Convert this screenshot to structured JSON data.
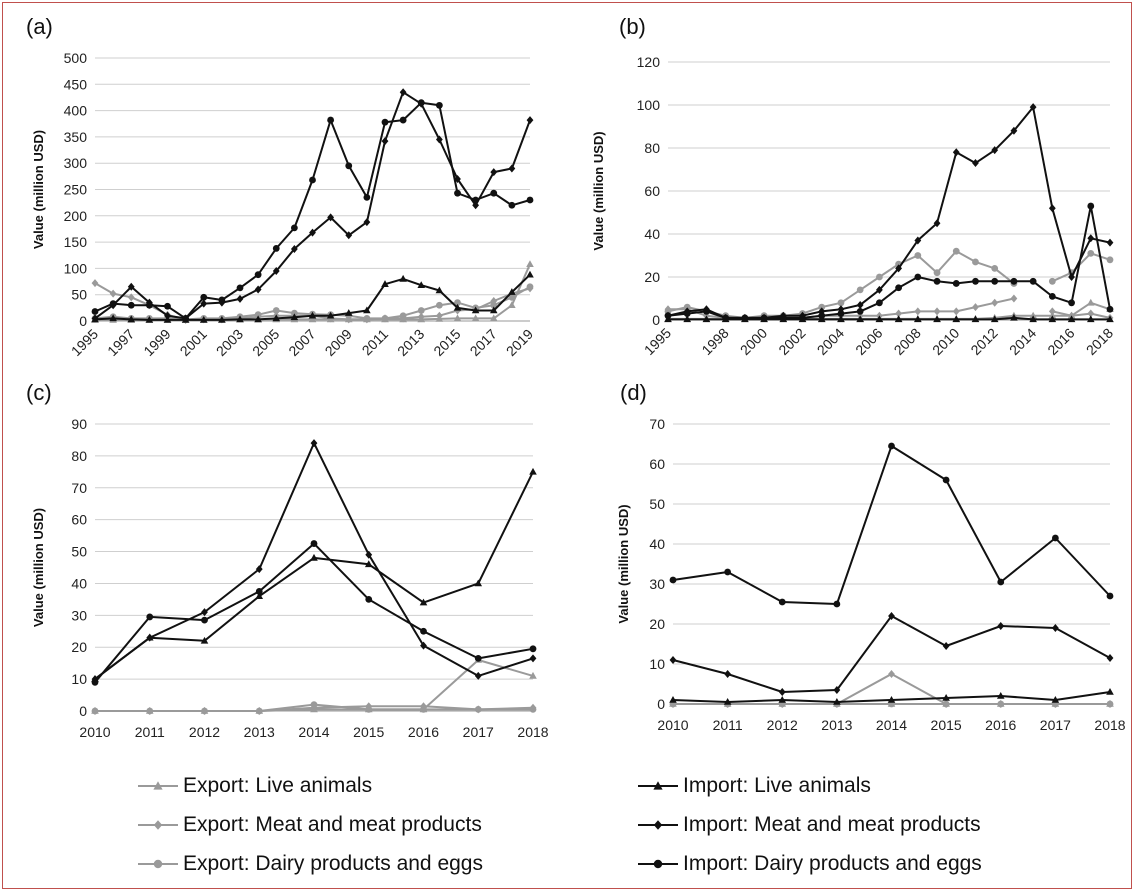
{
  "colors": {
    "export": "#9a9a9a",
    "import": "#111111",
    "axis": "#999999",
    "grid": "#cfcfcf"
  },
  "chart_data": [
    {
      "panel": "(a)",
      "type": "line",
      "ylabel": "Value (million USD)",
      "ylim": [
        0,
        500
      ],
      "yticks": [
        0,
        50,
        100,
        150,
        200,
        250,
        300,
        350,
        400,
        450,
        500
      ],
      "x": [
        1995,
        1996,
        1997,
        1998,
        1999,
        2000,
        2001,
        2002,
        2003,
        2004,
        2005,
        2006,
        2007,
        2008,
        2009,
        2010,
        2011,
        2012,
        2013,
        2014,
        2015,
        2016,
        2017,
        2018,
        2019
      ],
      "xticks": [
        1995,
        1997,
        1999,
        2001,
        2003,
        2005,
        2007,
        2009,
        2011,
        2013,
        2015,
        2017,
        2019
      ],
      "series": [
        {
          "name": "Export: Live animals",
          "group": "export",
          "marker": "triangle",
          "values": [
            2,
            2,
            2,
            2,
            2,
            2,
            2,
            3,
            3,
            3,
            3,
            3,
            3,
            3,
            3,
            3,
            3,
            3,
            3,
            4,
            5,
            5,
            5,
            30,
            108
          ]
        },
        {
          "name": "Export: Meat and meat products",
          "group": "export",
          "marker": "diamond",
          "values": [
            72,
            52,
            45,
            30,
            12,
            2,
            3,
            3,
            5,
            8,
            10,
            10,
            10,
            5,
            3,
            3,
            5,
            5,
            8,
            10,
            20,
            22,
            38,
            52,
            62
          ]
        },
        {
          "name": "Export: Dairy products and eggs",
          "group": "export",
          "marker": "circle",
          "values": [
            5,
            8,
            5,
            5,
            5,
            3,
            5,
            5,
            8,
            12,
            20,
            15,
            13,
            12,
            10,
            5,
            5,
            10,
            20,
            30,
            35,
            25,
            30,
            45,
            65
          ]
        },
        {
          "name": "Import: Live animals",
          "group": "import",
          "marker": "triangle",
          "values": [
            3,
            5,
            3,
            2,
            2,
            2,
            2,
            2,
            3,
            3,
            5,
            7,
            10,
            10,
            15,
            20,
            70,
            80,
            68,
            58,
            25,
            20,
            20,
            55,
            88
          ]
        },
        {
          "name": "Import: Meat and meat products",
          "group": "import",
          "marker": "diamond",
          "values": [
            5,
            30,
            65,
            35,
            10,
            5,
            33,
            35,
            42,
            60,
            95,
            137,
            168,
            197,
            163,
            188,
            342,
            435,
            413,
            345,
            270,
            220,
            283,
            290,
            382
          ]
        },
        {
          "name": "Import: Dairy products and eggs",
          "group": "import",
          "marker": "circle",
          "values": [
            18,
            33,
            30,
            30,
            28,
            5,
            45,
            40,
            63,
            88,
            138,
            177,
            268,
            382,
            295,
            235,
            378,
            382,
            415,
            410,
            243,
            230,
            243,
            220,
            230
          ]
        }
      ]
    },
    {
      "panel": "(b)",
      "type": "line",
      "ylabel": "Value (million USD)",
      "ylim": [
        0,
        120
      ],
      "yticks": [
        0,
        20,
        40,
        60,
        80,
        100,
        120
      ],
      "x": [
        1995,
        1996,
        1997,
        1998,
        1999,
        2000,
        2001,
        2002,
        2003,
        2004,
        2005,
        2006,
        2007,
        2008,
        2009,
        2010,
        2011,
        2012,
        2013,
        2014,
        2015,
        2016,
        2017,
        2018
      ],
      "xticks": [
        1995,
        1998,
        2000,
        2002,
        2004,
        2006,
        2008,
        2010,
        2012,
        2014,
        2016,
        2018
      ],
      "series": [
        {
          "name": "Export: Live animals",
          "group": "export",
          "marker": "triangle",
          "values": [
            0.5,
            0.5,
            0.5,
            0.5,
            0.5,
            0.5,
            0.5,
            0.5,
            0.5,
            0.5,
            0.5,
            0.5,
            0.5,
            0.5,
            0.5,
            0.5,
            0.5,
            1,
            2,
            2,
            2,
            2,
            8,
            5
          ]
        },
        {
          "name": "Export: Meat and meat products",
          "group": "export",
          "marker": "diamond",
          "values": [
            5,
            5,
            2,
            1,
            1,
            1,
            1,
            1,
            2,
            2,
            2,
            2,
            3,
            4,
            4,
            4,
            6,
            8,
            10,
            null,
            4,
            2,
            3,
            1
          ]
        },
        {
          "name": "Export: Dairy products and eggs",
          "group": "export",
          "marker": "circle",
          "values": [
            4,
            6,
            4,
            2,
            1,
            2,
            2,
            3,
            6,
            8,
            14,
            20,
            26,
            30,
            22,
            32,
            27,
            24,
            17,
            null,
            18,
            22,
            31,
            28
          ]
        },
        {
          "name": "Import: Live animals",
          "group": "import",
          "marker": "triangle",
          "values": [
            0.3,
            0.3,
            0.3,
            0.3,
            0.3,
            0.3,
            0.3,
            0.3,
            0.3,
            0.3,
            0.3,
            0.3,
            0.3,
            0.3,
            0.3,
            0.3,
            0.3,
            0.3,
            1,
            0.3,
            0.3,
            0.3,
            0.3,
            0.3
          ]
        },
        {
          "name": "Import: Meat and meat products",
          "group": "import",
          "marker": "diamond",
          "values": [
            2,
            4,
            5,
            1,
            1,
            1,
            2,
            2,
            4,
            5,
            7,
            14,
            24,
            37,
            45,
            78,
            73,
            79,
            88,
            99,
            52,
            20,
            38,
            36
          ]
        },
        {
          "name": "Import: Dairy products and eggs",
          "group": "import",
          "marker": "circle",
          "values": [
            2,
            3,
            4,
            1,
            1,
            1,
            1,
            1,
            2,
            3,
            4,
            8,
            15,
            20,
            18,
            17,
            18,
            18,
            18,
            18,
            11,
            8,
            53,
            5
          ]
        }
      ]
    },
    {
      "panel": "(c)",
      "type": "line",
      "ylabel": "Value (million USD)",
      "ylim": [
        0,
        90
      ],
      "yticks": [
        0,
        10,
        20,
        30,
        40,
        50,
        60,
        70,
        80,
        90
      ],
      "x": [
        2010,
        2011,
        2012,
        2013,
        2014,
        2015,
        2016,
        2017,
        2018
      ],
      "xticks": [
        2010,
        2011,
        2012,
        2013,
        2014,
        2015,
        2016,
        2017,
        2018
      ],
      "series": [
        {
          "name": "Export: Live animals",
          "group": "export",
          "marker": "triangle",
          "values": [
            0,
            0,
            0,
            0,
            0.5,
            0.5,
            0.5,
            16,
            11
          ]
        },
        {
          "name": "Export: Meat and meat products",
          "group": "export",
          "marker": "diamond",
          "values": [
            0,
            0,
            0,
            0,
            1,
            1.5,
            1.5,
            0.5,
            1
          ]
        },
        {
          "name": "Export: Dairy products and eggs",
          "group": "export",
          "marker": "circle",
          "values": [
            0,
            0,
            0,
            0,
            2,
            0.5,
            0.5,
            0.5,
            0.5
          ]
        },
        {
          "name": "Import: Live animals",
          "group": "import",
          "marker": "triangle",
          "values": [
            10,
            23,
            22,
            36,
            48,
            46,
            34,
            40,
            75
          ]
        },
        {
          "name": "Import: Meat and meat products",
          "group": "import",
          "marker": "diamond",
          "values": [
            10,
            23,
            31,
            44.5,
            84,
            49,
            20.5,
            11,
            16.5
          ]
        },
        {
          "name": "Import: Dairy products and eggs",
          "group": "import",
          "marker": "circle",
          "values": [
            9,
            29.5,
            28.5,
            37.5,
            52.5,
            35,
            25,
            16.5,
            19.5
          ]
        }
      ]
    },
    {
      "panel": "(d)",
      "type": "line",
      "ylabel": "Value (million USD)",
      "ylim": [
        0,
        70
      ],
      "yticks": [
        0,
        10,
        20,
        30,
        40,
        50,
        60,
        70
      ],
      "x": [
        2010,
        2011,
        2012,
        2013,
        2014,
        2015,
        2016,
        2017,
        2018
      ],
      "xticks": [
        2010,
        2011,
        2012,
        2013,
        2014,
        2015,
        2016,
        2017,
        2018
      ],
      "series": [
        {
          "name": "Export: Live animals",
          "group": "export",
          "marker": "triangle",
          "values": [
            0,
            0,
            0,
            0,
            0,
            0,
            0,
            0,
            0
          ]
        },
        {
          "name": "Export: Meat and meat products",
          "group": "export",
          "marker": "diamond",
          "values": [
            0,
            0,
            0,
            0,
            7.5,
            0,
            0,
            0,
            0
          ]
        },
        {
          "name": "Export: Dairy products and eggs",
          "group": "export",
          "marker": "circle",
          "values": [
            0,
            0,
            0,
            0,
            0,
            0,
            0,
            0,
            0
          ]
        },
        {
          "name": "Import: Live animals",
          "group": "import",
          "marker": "triangle",
          "values": [
            1,
            0.5,
            1,
            0.5,
            1,
            1.5,
            2,
            1,
            3
          ]
        },
        {
          "name": "Import: Meat and meat products",
          "group": "import",
          "marker": "diamond",
          "values": [
            11,
            7.5,
            3,
            3.5,
            22,
            14.5,
            19.5,
            19,
            11.5
          ]
        },
        {
          "name": "Import: Dairy products and eggs",
          "group": "import",
          "marker": "circle",
          "values": [
            31,
            33,
            25.5,
            25,
            64.5,
            56,
            30.5,
            41.5,
            27
          ]
        }
      ]
    }
  ],
  "legend": [
    {
      "label": "Export: Live animals",
      "group": "export",
      "marker": "triangle"
    },
    {
      "label": "Export: Meat and meat products",
      "group": "export",
      "marker": "diamond"
    },
    {
      "label": "Export: Dairy products and eggs",
      "group": "export",
      "marker": "circle"
    },
    {
      "label": "Import: Live animals",
      "group": "import",
      "marker": "triangle"
    },
    {
      "label": "Import: Meat and meat products",
      "group": "import",
      "marker": "diamond"
    },
    {
      "label": "Import: Dairy products and eggs",
      "group": "import",
      "marker": "circle"
    }
  ]
}
